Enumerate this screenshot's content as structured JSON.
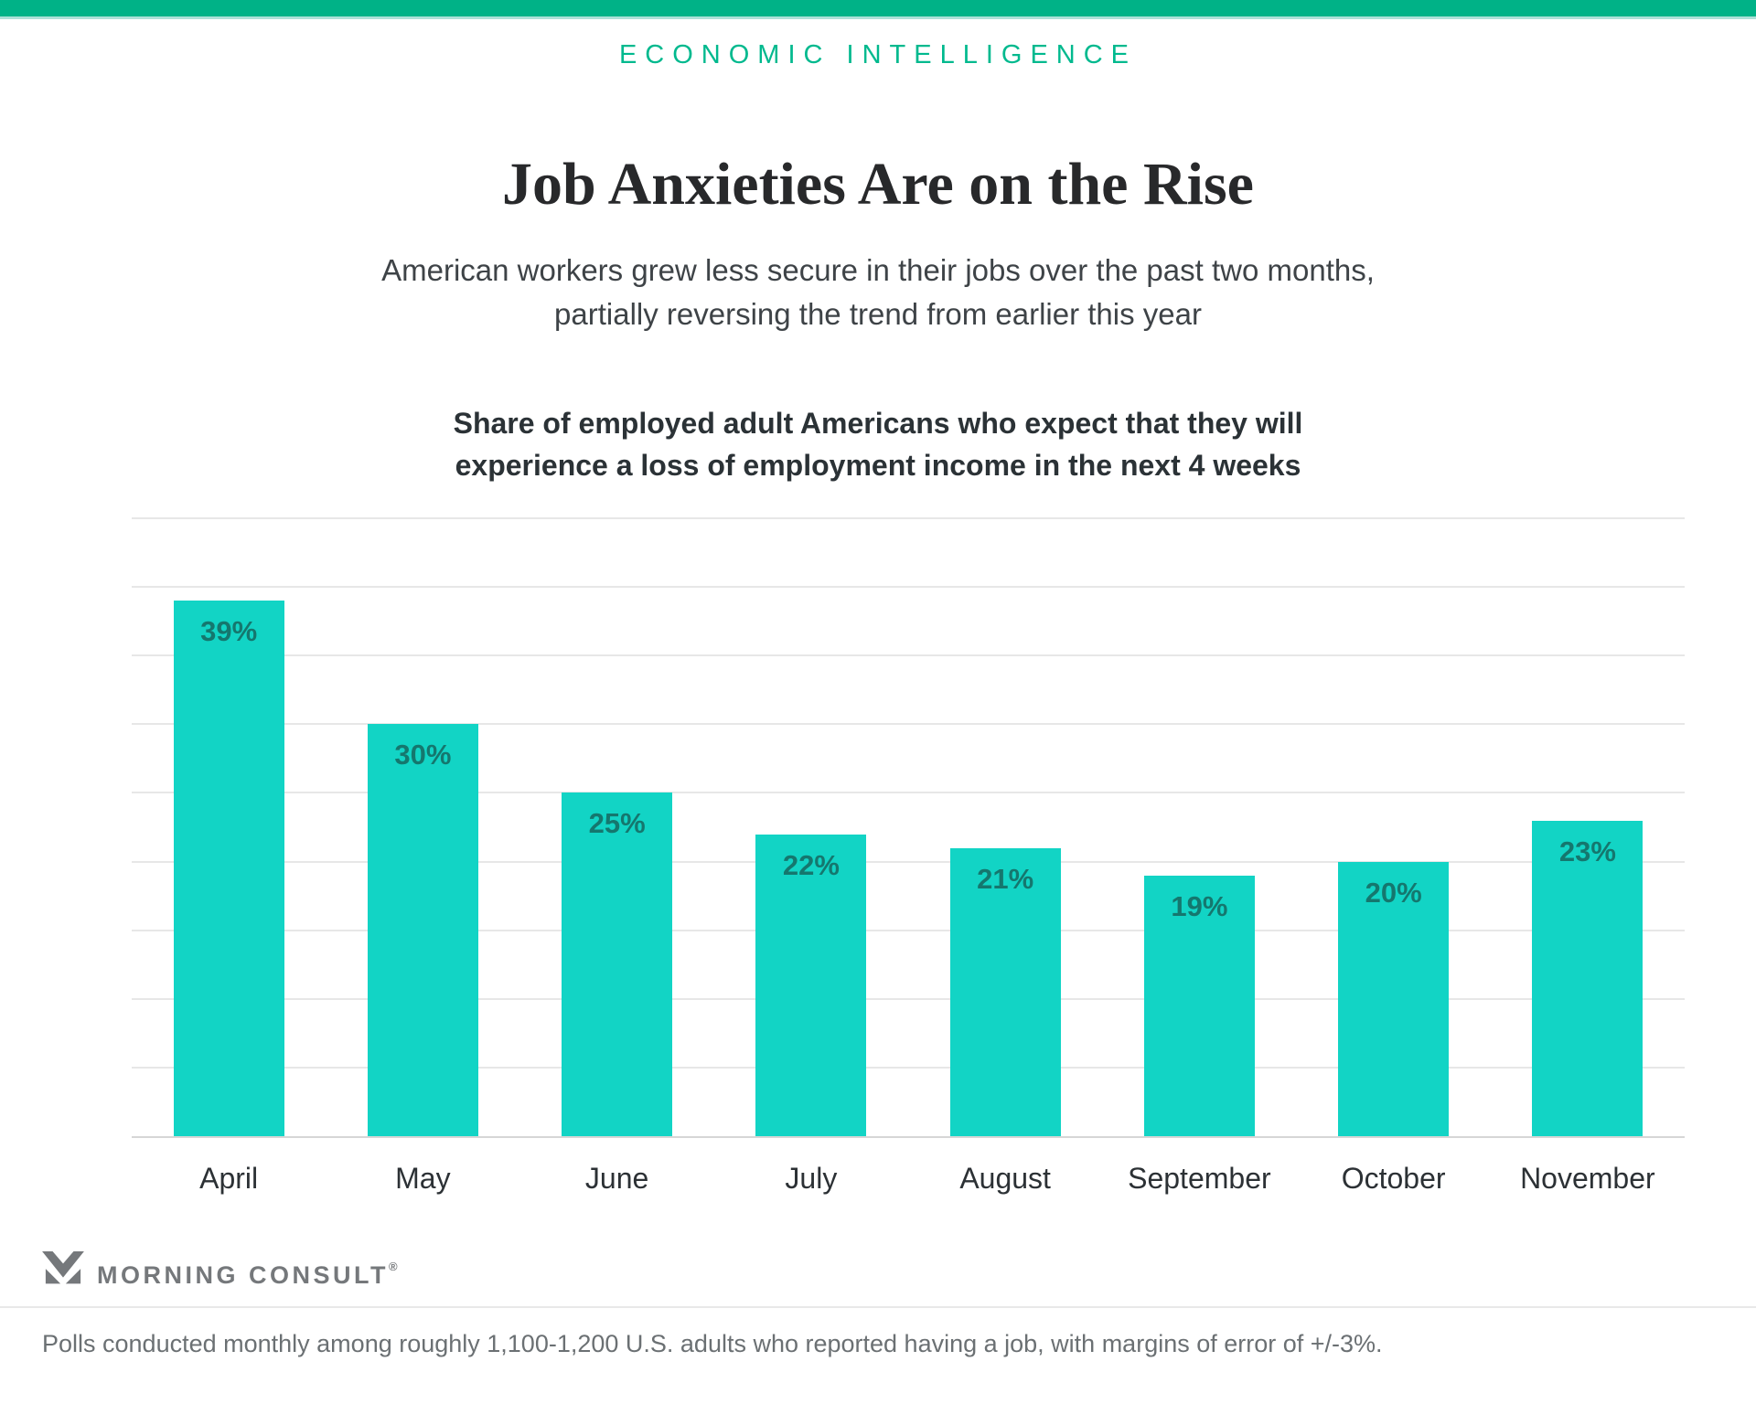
{
  "page": {
    "eyebrow": "ECONOMIC INTELLIGENCE",
    "title": "Job Anxieties Are on the Rise",
    "subtitle_lines": [
      "American workers grew less secure in their jobs over the past two months,",
      "partially reversing the trend from earlier this year"
    ],
    "chart_heading_lines": [
      "Share of employed adult Americans who expect that they will",
      "experience a loss of employment income in the next 4 weeks"
    ]
  },
  "chart_data": {
    "type": "bar",
    "title": "Share of employed adult Americans who expect that they will experience a loss of employment income in the next 4 weeks",
    "categories": [
      "April",
      "May",
      "June",
      "July",
      "August",
      "September",
      "October",
      "November"
    ],
    "values": [
      39,
      30,
      25,
      22,
      21,
      19,
      20,
      23
    ],
    "value_labels": [
      "39%",
      "30%",
      "25%",
      "22%",
      "21%",
      "19%",
      "20%",
      "23%"
    ],
    "value_suffix": "%",
    "xlabel": "",
    "ylabel": "",
    "ylim": [
      0,
      45
    ],
    "gridline_step": 5,
    "grid": true,
    "legend": false,
    "y_tick_labels_shown": false
  },
  "footer": {
    "logo_text": "MORNING CONSULT",
    "logo_reg_mark": "®",
    "logo_mark_icon": "mc-monogram-icon",
    "note": "Polls conducted monthly among roughly 1,100-1,200 U.S. adults who reported having a job, with margins of error of +/-3%."
  },
  "colors": {
    "banner_green": "#00b287",
    "banner_light_strip": "#ace0d7",
    "eyebrow_teal": "#00b98e",
    "title_text": "#28292b",
    "subtitle_text": "#3e4347",
    "chart_heading_text": "#2b3236",
    "bar_fill": "#12d4c5",
    "bar_value_label": "#15776e",
    "gridline": "#e7e7e7",
    "axis_line": "#d6d6d6",
    "month_label": "#2c3135",
    "logo_gray": "#75787b",
    "footer_text": "#6b7073"
  }
}
